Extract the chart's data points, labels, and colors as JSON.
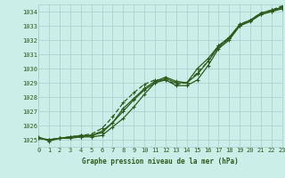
{
  "title": "Graphe pression niveau de la mer (hPa)",
  "bg_color": "#cceee8",
  "plot_bg_color": "#cceee8",
  "grid_color": "#aacccc",
  "line_color": "#2d5a1b",
  "x_min": 0,
  "x_max": 23,
  "y_min": 1024.5,
  "y_max": 1034.5,
  "y_ticks": [
    1025,
    1026,
    1027,
    1028,
    1029,
    1030,
    1031,
    1032,
    1033,
    1034
  ],
  "x_ticks": [
    0,
    1,
    2,
    3,
    4,
    5,
    6,
    7,
    8,
    9,
    10,
    11,
    12,
    13,
    14,
    15,
    16,
    17,
    18,
    19,
    20,
    21,
    22,
    23
  ],
  "series1_y": [
    1025.1,
    1025.0,
    1025.1,
    1025.1,
    1025.2,
    1025.2,
    1025.3,
    1025.9,
    1026.5,
    1027.3,
    1028.2,
    1029.0,
    1029.2,
    1028.8,
    1028.8,
    1029.2,
    1030.2,
    1031.4,
    1032.0,
    1033.0,
    1033.3,
    1033.8,
    1034.0,
    1034.2
  ],
  "series2_y": [
    1025.1,
    1025.0,
    1025.1,
    1025.2,
    1025.2,
    1025.3,
    1025.5,
    1026.2,
    1027.0,
    1027.8,
    1028.5,
    1029.0,
    1029.3,
    1029.0,
    1029.0,
    1029.6,
    1030.5,
    1031.5,
    1032.1,
    1033.0,
    1033.4,
    1033.8,
    1034.0,
    1034.3
  ],
  "series3_y": [
    1025.2,
    1024.9,
    1025.1,
    1025.2,
    1025.3,
    1025.3,
    1025.6,
    1026.2,
    1027.2,
    1027.9,
    1028.6,
    1029.1,
    1029.4,
    1029.1,
    1029.0,
    1030.0,
    1030.7,
    1031.6,
    1032.2,
    1033.1,
    1033.4,
    1033.9,
    1034.1,
    1034.3
  ],
  "series4_y": [
    1025.1,
    1025.0,
    1025.1,
    1025.2,
    1025.3,
    1025.4,
    1025.8,
    1026.6,
    1027.6,
    1028.3,
    1028.9,
    1029.2,
    1029.2,
    1028.9,
    1029.0,
    1029.7,
    1030.5,
    1031.6,
    1032.1,
    1033.1,
    1033.4,
    1033.9,
    1034.1,
    1034.4
  ]
}
